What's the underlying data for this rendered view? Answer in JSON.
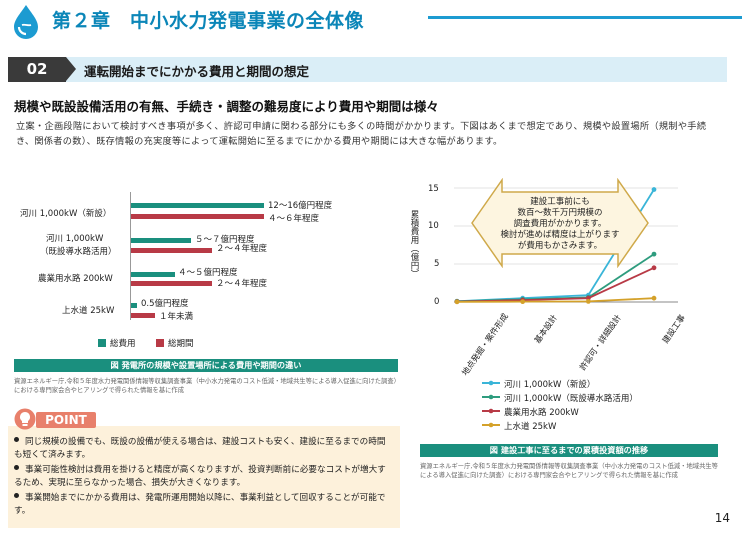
{
  "header": {
    "chapter_title": "第２章　中小水力発電事業の全体像"
  },
  "section": {
    "number": "02",
    "title": "運転開始までにかかる費用と期間の想定"
  },
  "lead": "規模や既設設備活用の有無、手続き・調整の難易度により費用や期間は様々",
  "body": "立案・企画段階において検討すべき事項が多く、許認可申請に関わる部分にも多くの時間がかかります。下図はあくまで想定であり、規模や設置場所（規制や手続き、関係者の数）、既存情報の充実度等によって運転開始に至るまでにかかる費用や期間には大きな幅があります。",
  "chart1": {
    "rows": [
      {
        "label": "河川  1,000kW（新設）",
        "total": "12～16億円程度",
        "period": "４～６年程度"
      },
      {
        "label": "河川  1,000kW",
        "label2": "（既設導水路活用）",
        "total": "５～７億円程度",
        "period": "２～４年程度"
      },
      {
        "label": "農業用水路  200kW",
        "total": "４～５億円程度",
        "period": "２～４年程度"
      },
      {
        "label": "上水道  25kW",
        "total": "0.5億円程度",
        "period": "１年未満"
      }
    ],
    "legend": {
      "total": "総費用",
      "period": "総期間"
    },
    "caption": "図  発電所の規模や設置場所による費用や期間の違い",
    "source": "資源エネルギー庁,令和５年度水力発電関係情報等収集調査事業（中小水力発電のコスト低減・地域共生等による導入促進に向けた調査）における専門家会合やヒアリングで得られた情報を基に作成"
  },
  "chart_data": {
    "type": "line",
    "categories": [
      "地点発掘・案件形成",
      "基本設計",
      "許認可・詳細設計",
      "建設工事"
    ],
    "ylabel": "累積費用（億円）",
    "ylim": [
      0,
      15
    ],
    "yticks": [
      "0",
      "5",
      "10",
      "15"
    ],
    "series": [
      {
        "name": "河川  1,000kW（新設）",
        "color": "#3ab5d8",
        "values": [
          0.1,
          0.5,
          0.9,
          14.8
        ]
      },
      {
        "name": "河川  1,000kW（既設導水路活用）",
        "color": "#2e9c7e",
        "values": [
          0.1,
          0.35,
          0.6,
          6.3
        ]
      },
      {
        "name": "農業用水路  200kW",
        "color": "#b83a46",
        "values": [
          0.05,
          0.25,
          0.5,
          4.5
        ]
      },
      {
        "name": "上水道  25kW",
        "color": "#d4a12a",
        "values": [
          0.02,
          0.05,
          0.08,
          0.5
        ]
      }
    ]
  },
  "chart2": {
    "callout": [
      "建設工事前にも",
      "数百～数千万円規模の",
      "調査費用がかかります。",
      "検討が進めば精度は上がります",
      "が費用もかさみます。"
    ],
    "caption": "図  建設工事に至るまでの累積投資額の推移",
    "source": "資源エネルギー庁,令和５年度水力発電関係情報等収集調査事業（中小水力発電のコスト低減・地域共生等による導入促進に向けた調査）における専門家会合やヒアリングで得られた情報を基に作成"
  },
  "point": {
    "badge": "POINT",
    "items": [
      "同じ規模の設備でも、既設の設備が使える場合は、建設コストも安く、建設に至るまでの時間も短くて済みます。",
      "事業可能性検討は費用を掛けると精度が高くなりますが、投資判断前に必要なコストが増大するため、実現に至らなかった場合、損失が大きくなります。",
      "事業開始までにかかる費用は、発電所運用開始以降に、事業利益として回収することが可能です。"
    ]
  },
  "page_number": "14",
  "colors": {
    "accent": "#0b86b8",
    "total": "#1a8f7e",
    "period": "#b83a46"
  }
}
